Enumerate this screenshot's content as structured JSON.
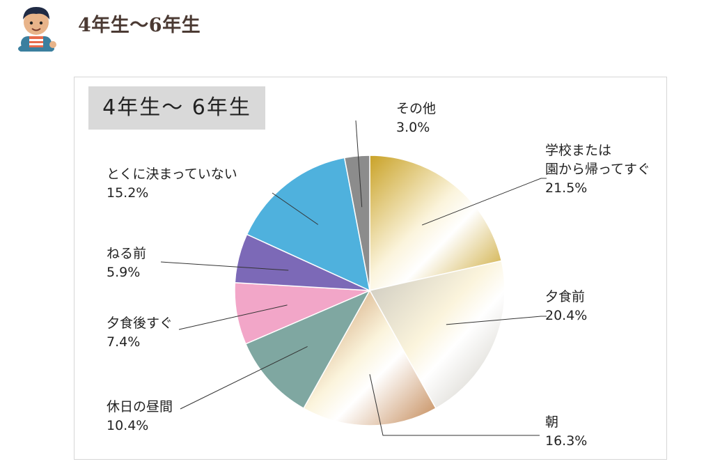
{
  "header": {
    "title": "4年生〜6年生",
    "icon": "student-avatar-icon"
  },
  "chart_data": {
    "type": "pie",
    "title": "4年生〜 6年生",
    "slices": [
      {
        "label": "学校または\n園から帰ってすぐ",
        "value": 21.5,
        "display": "21.5%",
        "color": "#c9a227"
      },
      {
        "label": "夕食前",
        "value": 20.4,
        "display": "20.4%",
        "color": "#c9c6bd"
      },
      {
        "label": "朝",
        "value": 16.3,
        "display": "16.3%",
        "color": "#c48a58"
      },
      {
        "label": "休日の昼間",
        "value": 10.4,
        "display": "10.4%",
        "color": "#7fa7a1"
      },
      {
        "label": "夕食後すぐ",
        "value": 7.4,
        "display": "7.4%",
        "color": "#f2a6c8"
      },
      {
        "label": "ねる前",
        "value": 5.9,
        "display": "5.9%",
        "color": "#7c69b7"
      },
      {
        "label": "とくに決まっていない",
        "value": 15.2,
        "display": "15.2%",
        "color": "#4fb1dd"
      },
      {
        "label": "その他",
        "value": 3.0,
        "display": "3.0%",
        "color": "#8c8c8c"
      }
    ]
  }
}
